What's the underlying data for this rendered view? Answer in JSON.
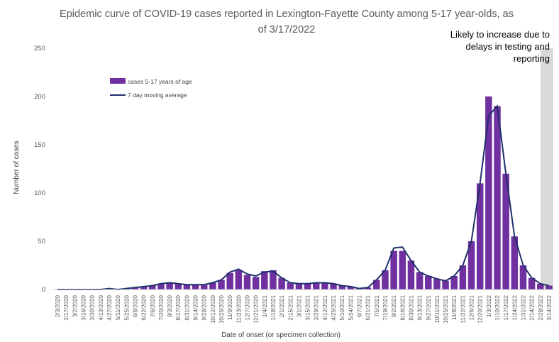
{
  "chart_data": {
    "type": "bar",
    "title_line1": "Epidemic curve of COVID-19 cases reported in Lexington-Fayette County among 5-17 year-olds, as",
    "title_line2": "of 3/17/2022",
    "xlabel": "Date of onset (or specimen collection)",
    "ylabel": "Number of cases",
    "ylim": [
      0,
      250
    ],
    "yticks": [
      "0",
      "50",
      "100",
      "150",
      "200",
      "250"
    ],
    "grid": false,
    "legend_position": "upper-left",
    "annotation": [
      "Likely to increase due to",
      "delays in testing and",
      "reporting"
    ],
    "colors": {
      "bars": "#7030a0",
      "line": "#1f2f6b",
      "shade": "#d9d9d9",
      "axis": "#bfbfbf"
    },
    "x": [
      "2/3/2020",
      "2/17/2020",
      "3/2/2020",
      "3/16/2020",
      "3/30/2020",
      "4/13/2020",
      "4/27/2020",
      "5/11/2020",
      "5/25/2020",
      "6/8/2020",
      "6/22/2020",
      "7/6/2020",
      "7/20/2020",
      "8/3/2020",
      "8/17/2020",
      "8/31/2020",
      "9/14/2020",
      "9/28/2020",
      "10/12/2020",
      "10/26/2020",
      "11/9/2020",
      "11/23/2020",
      "12/7/2020",
      "12/21/2020",
      "1/4/2021",
      "1/18/2021",
      "2/1/2021",
      "2/15/2021",
      "3/1/2021",
      "3/15/2021",
      "3/29/2021",
      "4/12/2021",
      "4/26/2021",
      "5/10/2021",
      "5/24/2021",
      "6/7/2021",
      "6/21/2021",
      "7/5/2021",
      "7/19/2021",
      "8/2/2021",
      "8/16/2021",
      "8/30/2021",
      "9/13/2021",
      "9/27/2021",
      "10/11/2021",
      "10/25/2021",
      "11/8/2021",
      "11/22/2021",
      "12/6/2021",
      "12/20/2021",
      "1/3/2022",
      "1/10/2022",
      "1/17/2022",
      "1/24/2022",
      "1/31/2022",
      "2/14/2022",
      "2/28/2022",
      "3/14/2022"
    ],
    "series": [
      {
        "name": "cases 5-17 years of age",
        "type": "bar",
        "values": [
          0,
          0,
          0,
          0,
          0,
          0,
          1,
          0,
          1,
          2,
          3,
          4,
          6,
          7,
          6,
          5,
          5,
          5,
          7,
          10,
          17,
          20,
          15,
          13,
          19,
          20,
          12,
          7,
          6,
          6,
          7,
          7,
          6,
          4,
          3,
          1,
          2,
          10,
          20,
          40,
          40,
          30,
          18,
          14,
          11,
          9,
          14,
          25,
          50,
          110,
          200,
          190,
          120,
          55,
          25,
          12,
          6,
          4
        ]
      },
      {
        "name": "7 day moving average",
        "type": "line",
        "values": [
          0,
          0,
          0,
          0,
          0,
          0,
          1,
          0,
          1,
          2,
          3,
          4,
          6,
          7,
          6,
          5,
          5,
          5,
          7,
          10,
          18,
          21,
          16,
          14,
          18,
          19,
          12,
          7,
          6,
          6,
          7,
          7,
          6,
          4,
          3,
          1,
          2,
          10,
          20,
          43,
          44,
          30,
          18,
          14,
          11,
          9,
          14,
          25,
          50,
          110,
          180,
          190,
          120,
          55,
          25,
          12,
          6,
          4
        ]
      }
    ],
    "annotation_shaded_from": "3/2/2022"
  }
}
